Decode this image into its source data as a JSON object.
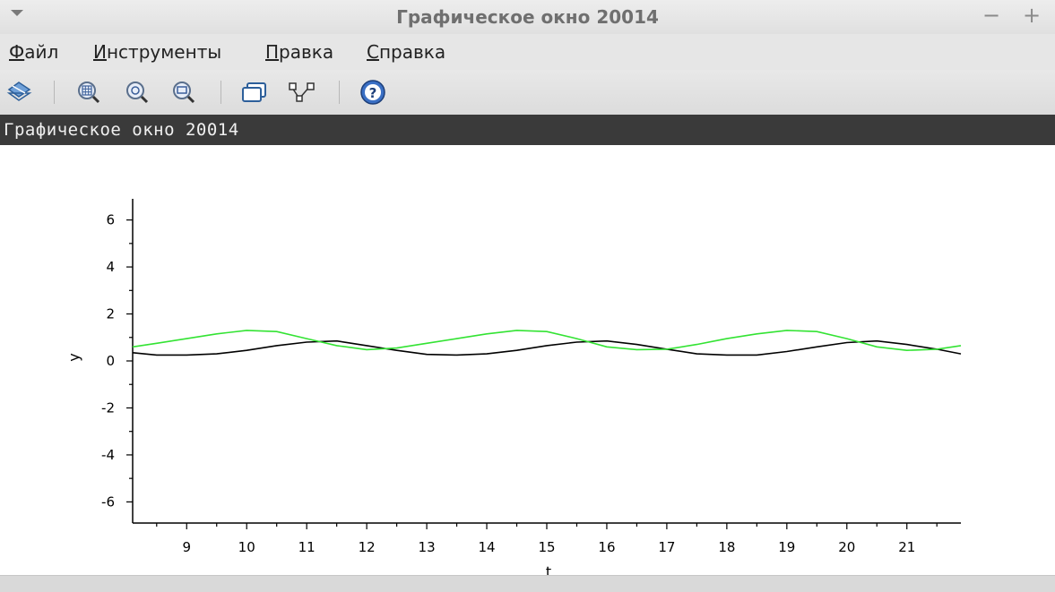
{
  "window": {
    "title": "Графическое окно 20014",
    "minimize": "−",
    "maximize": "+"
  },
  "menu": {
    "file": {
      "acc": "Ф",
      "rest": "айл"
    },
    "tools": {
      "acc": "И",
      "rest": "нструменты"
    },
    "edit": {
      "acc": "П",
      "rest": "равка"
    },
    "help": {
      "acc": "С",
      "rest": "правка"
    }
  },
  "toolbar_icons": [
    "rotate-icon",
    "zoom-grid-icon",
    "zoom-in-icon",
    "zoom-region-icon",
    "window-icon",
    "datatip-icon",
    "help-icon"
  ],
  "figure_label": "Графическое окно 20014",
  "colors": {
    "series_black": "#000000",
    "series_green": "#33e333",
    "figbar": "#3a3a3a"
  },
  "chart_data": {
    "type": "line",
    "xlabel": "t",
    "ylabel": "y",
    "xlim": [
      8.1,
      21.9
    ],
    "ylim": [
      -6.9,
      6.9
    ],
    "xticks": [
      9,
      10,
      11,
      12,
      13,
      14,
      15,
      16,
      17,
      18,
      19,
      20,
      21
    ],
    "yticks": [
      6,
      4,
      2,
      0,
      -2,
      -4,
      -6
    ],
    "grid": false,
    "series": [
      {
        "color": "#000000",
        "x": [
          8.1,
          8.5,
          9.0,
          9.5,
          10.0,
          10.5,
          11.0,
          11.5,
          12.0,
          12.5,
          13.0,
          13.5,
          14.0,
          14.5,
          15.0,
          15.5,
          16.0,
          16.5,
          17.0,
          17.5,
          18.0,
          18.5,
          19.0,
          19.5,
          20.0,
          20.5,
          21.0,
          21.5,
          21.9
        ],
        "y": [
          0.35,
          0.25,
          0.25,
          0.3,
          0.45,
          0.65,
          0.8,
          0.85,
          0.65,
          0.45,
          0.28,
          0.25,
          0.3,
          0.45,
          0.65,
          0.8,
          0.85,
          0.7,
          0.5,
          0.3,
          0.25,
          0.25,
          0.4,
          0.6,
          0.78,
          0.85,
          0.7,
          0.5,
          0.3
        ]
      },
      {
        "color": "#33e333",
        "x": [
          8.1,
          8.5,
          9.0,
          9.5,
          10.0,
          10.5,
          11.0,
          11.5,
          12.0,
          12.5,
          13.0,
          13.5,
          14.0,
          14.5,
          15.0,
          15.5,
          16.0,
          16.5,
          17.0,
          17.5,
          18.0,
          18.5,
          19.0,
          19.5,
          20.0,
          20.5,
          21.0,
          21.5,
          21.9
        ],
        "y": [
          0.6,
          0.75,
          0.95,
          1.15,
          1.3,
          1.25,
          0.95,
          0.65,
          0.48,
          0.55,
          0.75,
          0.95,
          1.15,
          1.3,
          1.25,
          0.95,
          0.6,
          0.48,
          0.5,
          0.7,
          0.95,
          1.15,
          1.3,
          1.25,
          0.95,
          0.6,
          0.45,
          0.5,
          0.65
        ]
      }
    ]
  }
}
